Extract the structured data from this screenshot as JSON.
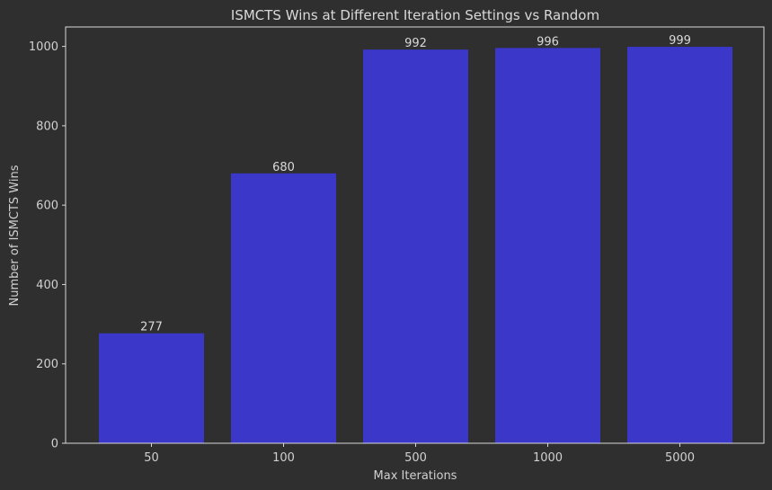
{
  "chart_data": {
    "type": "bar",
    "title": "ISMCTS Wins at Different Iteration Settings vs Random",
    "xlabel": "Max Iterations",
    "ylabel": "Number of ISMCTS Wins",
    "categories": [
      "50",
      "100",
      "500",
      "1000",
      "5000"
    ],
    "values": [
      277,
      680,
      992,
      996,
      999
    ],
    "data_labels": [
      "277",
      "680",
      "992",
      "996",
      "999"
    ],
    "yticks": [
      0,
      200,
      400,
      600,
      800,
      1000
    ],
    "ytick_labels": [
      "0",
      "200",
      "400",
      "600",
      "800",
      "1000"
    ],
    "ylim": [
      0,
      1048.95
    ],
    "grid": false,
    "colors": {
      "background": "#2f2f2f",
      "bar": "#3a37c9",
      "axis": "#d8d8d8",
      "text": "#d0d0d0"
    }
  }
}
